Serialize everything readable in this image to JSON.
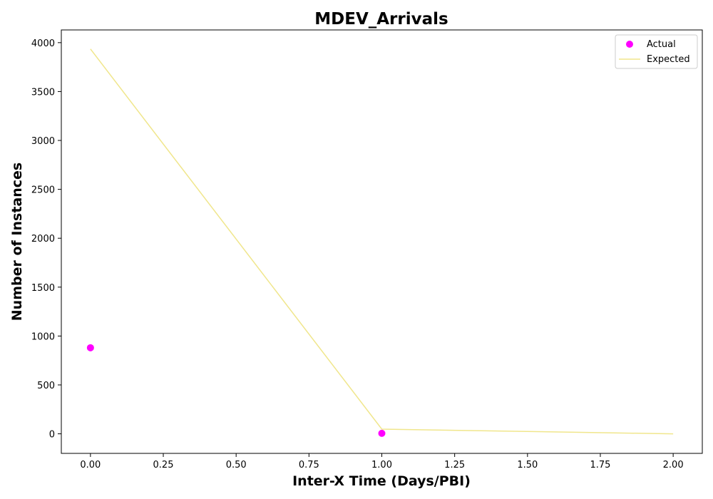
{
  "chart_data": {
    "type": "scatter",
    "title": "MDEV_Arrivals",
    "xlabel": "Inter-X Time (Days/PBI)",
    "ylabel": "Number of Instances",
    "xlim": [
      -0.1,
      2.1
    ],
    "ylim": [
      -200,
      4130
    ],
    "xticks": [
      0.0,
      0.25,
      0.5,
      0.75,
      1.0,
      1.25,
      1.5,
      1.75,
      2.0
    ],
    "xtick_labels": [
      "0.00",
      "0.25",
      "0.50",
      "0.75",
      "1.00",
      "1.25",
      "1.50",
      "1.75",
      "2.00"
    ],
    "yticks": [
      0,
      500,
      1000,
      1500,
      2000,
      2500,
      3000,
      3500,
      4000
    ],
    "ytick_labels": [
      "0",
      "500",
      "1000",
      "1500",
      "2000",
      "2500",
      "3000",
      "3500",
      "4000"
    ],
    "grid": false,
    "legend_position": "top-right",
    "series": [
      {
        "name": "Actual",
        "kind": "scatter",
        "color": "#ff00ff",
        "x": [
          0,
          1
        ],
        "y": [
          880,
          5
        ]
      },
      {
        "name": "Expected",
        "kind": "line",
        "color": "#f0e68c",
        "x": [
          0,
          1,
          2
        ],
        "y": [
          3935,
          48,
          0
        ]
      }
    ]
  }
}
